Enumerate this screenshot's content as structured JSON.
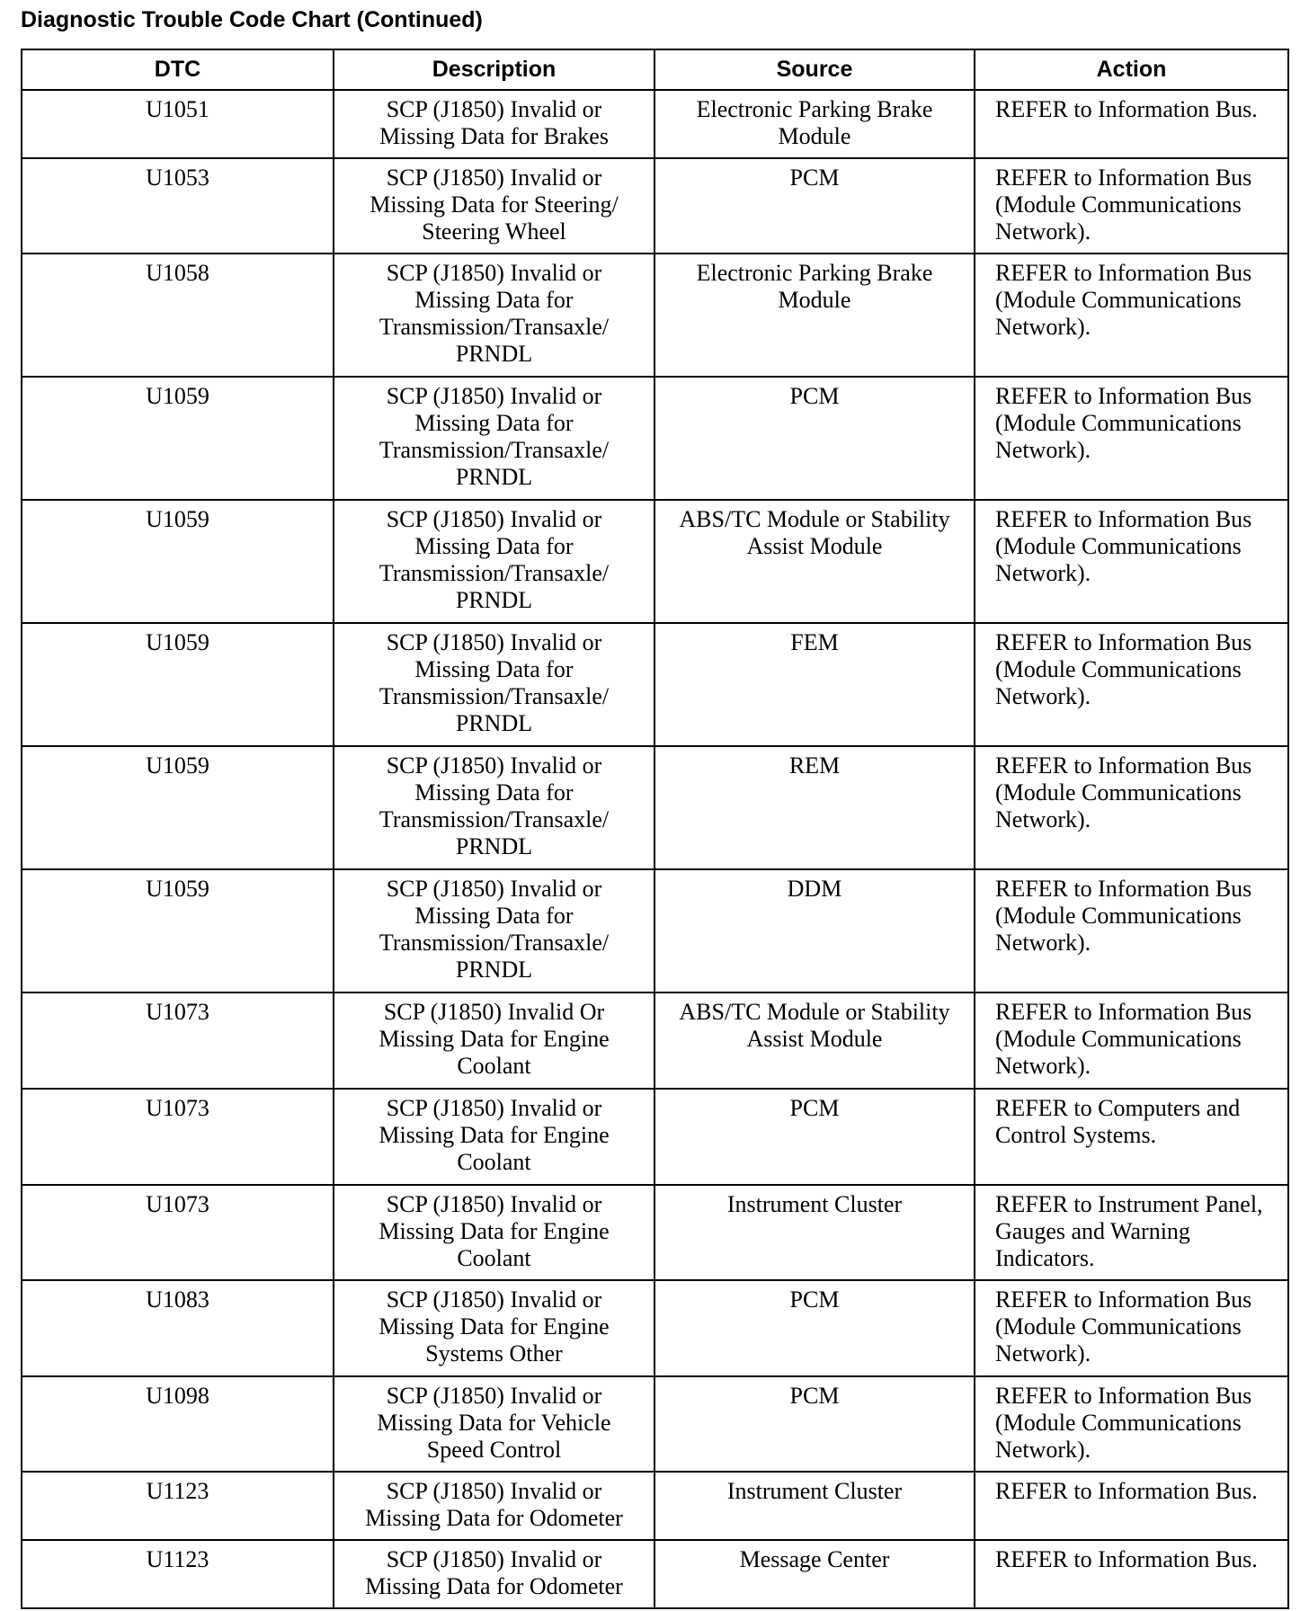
{
  "header": {
    "title": "Diagnostic Trouble Code Chart (Continued)"
  },
  "table": {
    "columns": [
      "DTC",
      "Description",
      "Source",
      "Action"
    ],
    "rows": [
      [
        "U1051",
        "SCP (J1850) Invalid or Missing Data for Brakes",
        "Electronic Parking Brake Module",
        "REFER to Information Bus."
      ],
      [
        "U1053",
        "SCP (J1850) Invalid or Missing Data for Steering/ Steering Wheel",
        "PCM",
        "REFER to Information Bus (Module Communications Network)."
      ],
      [
        "U1058",
        "SCP (J1850) Invalid or Missing Data for Transmission/Transaxle/ PRNDL",
        "Electronic Parking Brake Module",
        "REFER to Information Bus (Module Communications Network)."
      ],
      [
        "U1059",
        "SCP (J1850) Invalid or Missing Data for Transmission/Transaxle/ PRNDL",
        "PCM",
        "REFER to Information Bus (Module Communications Network)."
      ],
      [
        "U1059",
        "SCP (J1850) Invalid or Missing Data for Transmission/Transaxle/ PRNDL",
        "ABS/TC Module or Stability Assist Module",
        "REFER to Information Bus (Module Communications Network)."
      ],
      [
        "U1059",
        "SCP (J1850) Invalid or Missing Data for Transmission/Transaxle/ PRNDL",
        "FEM",
        "REFER to Information Bus (Module Communications Network)."
      ],
      [
        "U1059",
        "SCP (J1850) Invalid or Missing Data for Transmission/Transaxle/ PRNDL",
        "REM",
        "REFER to Information Bus (Module Communications Network)."
      ],
      [
        "U1059",
        "SCP (J1850) Invalid or Missing Data for Transmission/Transaxle/ PRNDL",
        "DDM",
        "REFER to Information Bus (Module Communications Network)."
      ],
      [
        "U1073",
        "SCP (J1850) Invalid Or Missing Data for Engine Coolant",
        "ABS/TC Module or Stability Assist Module",
        "REFER to Information Bus (Module Communications Network)."
      ],
      [
        "U1073",
        "SCP (J1850) Invalid or Missing Data for Engine Coolant",
        "PCM",
        "REFER to Computers and Control Systems."
      ],
      [
        "U1073",
        "SCP (J1850) Invalid or Missing Data for Engine Coolant",
        "Instrument Cluster",
        "REFER to Instrument Panel, Gauges and Warning Indicators."
      ],
      [
        "U1083",
        "SCP (J1850) Invalid or Missing Data for Engine Systems Other",
        "PCM",
        "REFER to Information Bus (Module Communications Network)."
      ],
      [
        "U1098",
        "SCP (J1850) Invalid or Missing Data for Vehicle Speed Control",
        "PCM",
        "REFER to Information Bus (Module Communications Network)."
      ],
      [
        "U1123",
        "SCP (J1850) Invalid or Missing Data for Odometer",
        "Instrument Cluster",
        "REFER to Information Bus."
      ],
      [
        "U1123",
        "SCP (J1850) Invalid or Missing Data for Odometer",
        "Message Center",
        "REFER to Information Bus."
      ]
    ]
  }
}
